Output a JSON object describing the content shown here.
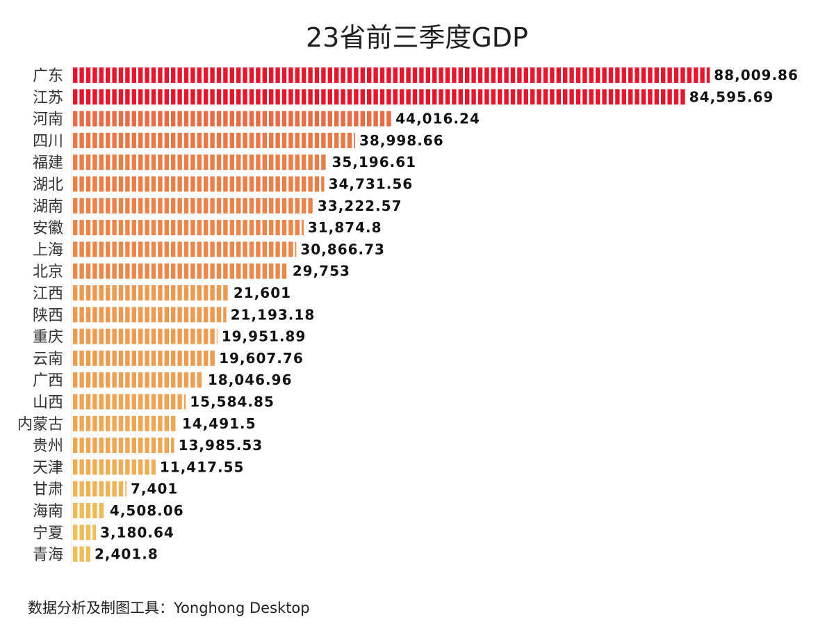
{
  "chart_data": {
    "type": "bar",
    "orientation": "horizontal",
    "title": "23省前三季度GDP",
    "footer": "数据分析及制图工具：Yonghong Desktop",
    "categories": [
      "广东",
      "江苏",
      "河南",
      "四川",
      "福建",
      "湖北",
      "湖南",
      "安徽",
      "上海",
      "北京",
      "江西",
      "陕西",
      "重庆",
      "云南",
      "广西",
      "山西",
      "内蒙古",
      "贵州",
      "天津",
      "甘肃",
      "海南",
      "宁夏",
      "青海"
    ],
    "values": [
      88009.86,
      84595.69,
      44016.24,
      38998.66,
      35196.61,
      34731.56,
      33222.57,
      31874.8,
      30866.73,
      29753,
      21601,
      21193.18,
      19951.89,
      19607.76,
      18046.96,
      15584.85,
      14491.5,
      13985.53,
      11417.55,
      7401,
      4508.06,
      3180.64,
      2401.8
    ],
    "value_labels": [
      "88,009.86",
      "84,595.69",
      "44,016.24",
      "38,998.66",
      "35,196.61",
      "34,731.56",
      "33,222.57",
      "31,874.8",
      "30,866.73",
      "29,753",
      "21,601",
      "21,193.18",
      "19,951.89",
      "19,607.76",
      "18,046.96",
      "15,584.85",
      "14,491.5",
      "13,985.53",
      "11,417.55",
      "7,401",
      "4,508.06",
      "3,180.64",
      "2,401.8"
    ],
    "xlim": [
      0,
      90000
    ],
    "grid": false,
    "legend": "none",
    "colors": {
      "high": "#e3182d",
      "mid": "#e86b45",
      "low": "#f0bd5b"
    }
  }
}
